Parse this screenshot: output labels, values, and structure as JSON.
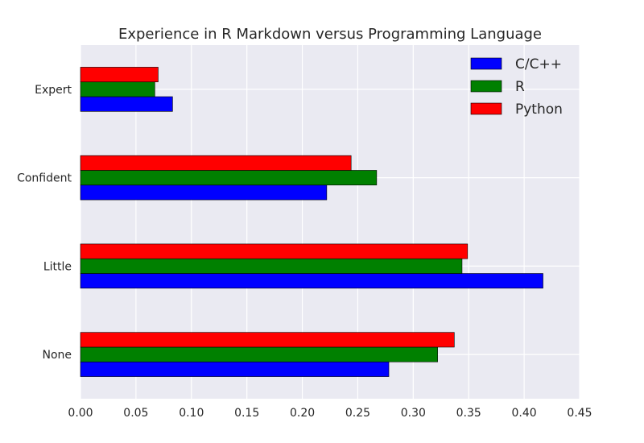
{
  "chart_data": {
    "type": "bar",
    "orientation": "horizontal",
    "title": "Experience in R Markdown versus Programming Language",
    "xlabel": "",
    "ylabel": "",
    "categories": [
      "None",
      "Little",
      "Confident",
      "Expert"
    ],
    "xlim": [
      0,
      0.45
    ],
    "xticks": [
      "0.00",
      "0.05",
      "0.10",
      "0.15",
      "0.20",
      "0.25",
      "0.30",
      "0.35",
      "0.40",
      "0.45"
    ],
    "series": [
      {
        "name": "C/C++",
        "color": "#0000ff",
        "values": [
          0.278,
          0.417,
          0.222,
          0.083
        ]
      },
      {
        "name": "R",
        "color": "#008000",
        "values": [
          0.322,
          0.344,
          0.267,
          0.067
        ]
      },
      {
        "name": "Python",
        "color": "#ff0000",
        "values": [
          0.337,
          0.349,
          0.244,
          0.07
        ]
      }
    ],
    "grid": true,
    "legend_position": "top-right",
    "background": "#eaeaf2"
  }
}
